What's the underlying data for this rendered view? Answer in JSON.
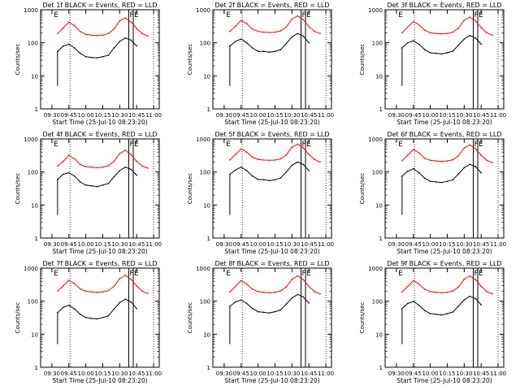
{
  "figure": {
    "ylabel": "Counts/sec",
    "xlabel": "Start Time (25-Jul-10 08:23:20)",
    "colors": {
      "events": "#000000",
      "lld": "#ff0000",
      "axis": "#000000"
    },
    "shared_axis": {
      "xticks": [
        "09:30",
        "09:45",
        "10:00",
        "10:15",
        "10:30",
        "10:45",
        "11:00"
      ],
      "yticks": [
        "1",
        "10",
        "100",
        "1000"
      ],
      "yscale": "log",
      "ylim": [
        1,
        1000
      ]
    }
  },
  "chart_data": [
    {
      "type": "line",
      "title": "Det 1f BLACK = Events, RED = LLD",
      "xlabel": "Start Time (25-Jul-10 08:23:20)",
      "ylabel": "Counts/sec",
      "x": [
        "09:35",
        "09:40",
        "09:45",
        "09:50",
        "09:55",
        "10:00",
        "10:05",
        "10:10",
        "10:15",
        "10:20",
        "10:25",
        "10:30",
        "10:35",
        "10:40",
        "10:45",
        "10:50",
        "10:55"
      ],
      "series": [
        {
          "name": "LLD",
          "color": "#ff0000",
          "values": [
            190,
            280,
            420,
            330,
            220,
            180,
            170,
            165,
            170,
            190,
            260,
            460,
            560,
            430,
            270,
            190,
            160
          ]
        },
        {
          "name": "Events",
          "color": "#000000",
          "values": [
            55,
            80,
            90,
            70,
            48,
            38,
            36,
            35,
            38,
            42,
            70,
            110,
            140,
            120,
            80,
            null,
            null
          ]
        }
      ],
      "markers": [
        {
          "label": "E",
          "x": "09:31"
        },
        {
          "label": "F",
          "x": "10:38"
        },
        {
          "label": "E",
          "x": "10:42"
        }
      ]
    },
    {
      "type": "line",
      "title": "Det 2f BLACK = Events, RED = LLD",
      "xlabel": "Start Time (25-Jul-10 08:23:20)",
      "ylabel": "Counts/sec",
      "x": [
        "09:35",
        "09:40",
        "09:45",
        "09:50",
        "09:55",
        "10:00",
        "10:05",
        "10:10",
        "10:15",
        "10:20",
        "10:25",
        "10:30",
        "10:35",
        "10:40",
        "10:45",
        "10:50",
        "10:55"
      ],
      "series": [
        {
          "name": "LLD",
          "color": "#ff0000",
          "values": [
            220,
            320,
            470,
            380,
            260,
            220,
            210,
            205,
            210,
            230,
            300,
            520,
            650,
            500,
            310,
            220,
            190
          ]
        },
        {
          "name": "Events",
          "color": "#000000",
          "values": [
            80,
            110,
            130,
            100,
            70,
            55,
            55,
            52,
            55,
            62,
            95,
            150,
            190,
            160,
            100,
            null,
            null
          ]
        }
      ],
      "markers": [
        {
          "label": "E",
          "x": "09:31"
        },
        {
          "label": "F",
          "x": "10:38"
        },
        {
          "label": "E",
          "x": "10:42"
        }
      ]
    },
    {
      "type": "line",
      "title": "Det 3f BLACK = Events, RED = LLD",
      "xlabel": "Start Time (25-Jul-10 08:23:20)",
      "ylabel": "Counts/sec",
      "x": [
        "09:35",
        "09:40",
        "09:45",
        "09:50",
        "09:55",
        "10:00",
        "10:05",
        "10:10",
        "10:15",
        "10:20",
        "10:25",
        "10:30",
        "10:35",
        "10:40",
        "10:45",
        "10:50",
        "10:55"
      ],
      "series": [
        {
          "name": "LLD",
          "color": "#ff0000",
          "values": [
            200,
            300,
            440,
            350,
            240,
            200,
            190,
            185,
            190,
            210,
            280,
            480,
            600,
            460,
            290,
            200,
            170
          ]
        },
        {
          "name": "Events",
          "color": "#000000",
          "values": [
            70,
            100,
            115,
            90,
            62,
            50,
            48,
            46,
            50,
            56,
            85,
            130,
            165,
            140,
            90,
            null,
            null
          ]
        }
      ],
      "markers": [
        {
          "label": "E",
          "x": "09:31"
        },
        {
          "label": "F",
          "x": "10:38"
        },
        {
          "label": "E",
          "x": "10:42"
        }
      ]
    },
    {
      "type": "line",
      "title": "Det 4f BLACK = Events, RED = LLD",
      "xlabel": "Start Time (25-Jul-10 08:23:20)",
      "ylabel": "Counts/sec",
      "x": [
        "09:35",
        "09:40",
        "09:45",
        "09:50",
        "09:55",
        "10:00",
        "10:05",
        "10:10",
        "10:15",
        "10:20",
        "10:25",
        "10:30",
        "10:35",
        "10:40",
        "10:45",
        "10:50",
        "10:55"
      ],
      "series": [
        {
          "name": "LLD",
          "color": "#ff0000",
          "values": [
            150,
            210,
            320,
            250,
            170,
            145,
            140,
            135,
            140,
            155,
            210,
            360,
            450,
            340,
            210,
            150,
            130
          ]
        },
        {
          "name": "Events",
          "color": "#000000",
          "values": [
            60,
            85,
            95,
            75,
            50,
            40,
            38,
            36,
            40,
            45,
            72,
            110,
            140,
            120,
            80,
            null,
            null
          ]
        }
      ],
      "markers": [
        {
          "label": "E",
          "x": "09:31"
        },
        {
          "label": "F",
          "x": "10:38"
        },
        {
          "label": "E",
          "x": "10:42"
        }
      ]
    },
    {
      "type": "line",
      "title": "Det 5f BLACK = Events, RED = LLD",
      "xlabel": "Start Time (25-Jul-10 08:23:20)",
      "ylabel": "Counts/sec",
      "x": [
        "09:35",
        "09:40",
        "09:45",
        "09:50",
        "09:55",
        "10:00",
        "10:05",
        "10:10",
        "10:15",
        "10:20",
        "10:25",
        "10:30",
        "10:35",
        "10:40",
        "10:45",
        "10:50",
        "10:55"
      ],
      "series": [
        {
          "name": "LLD",
          "color": "#ff0000",
          "values": [
            230,
            340,
            500,
            400,
            280,
            240,
            230,
            225,
            230,
            250,
            330,
            560,
            700,
            540,
            340,
            240,
            200
          ]
        },
        {
          "name": "Events",
          "color": "#000000",
          "values": [
            85,
            115,
            140,
            110,
            75,
            60,
            58,
            55,
            58,
            66,
            100,
            160,
            200,
            170,
            110,
            null,
            null
          ]
        }
      ],
      "markers": [
        {
          "label": "E",
          "x": "09:31"
        },
        {
          "label": "F",
          "x": "10:38"
        },
        {
          "label": "E",
          "x": "10:42"
        }
      ]
    },
    {
      "type": "line",
      "title": "Det 6f BLACK = Events, RED = LLD",
      "xlabel": "Start Time (25-Jul-10 08:23:20)",
      "ylabel": "Counts/sec",
      "x": [
        "09:35",
        "09:40",
        "09:45",
        "09:50",
        "09:55",
        "10:00",
        "10:05",
        "10:10",
        "10:15",
        "10:20",
        "10:25",
        "10:30",
        "10:35",
        "10:40",
        "10:45",
        "10:50",
        "10:55"
      ],
      "series": [
        {
          "name": "LLD",
          "color": "#ff0000",
          "values": [
            220,
            320,
            480,
            380,
            260,
            225,
            215,
            210,
            215,
            235,
            310,
            530,
            660,
            510,
            320,
            225,
            190
          ]
        },
        {
          "name": "Events",
          "color": "#000000",
          "values": [
            75,
            105,
            125,
            95,
            65,
            52,
            50,
            48,
            52,
            58,
            88,
            135,
            170,
            145,
            95,
            null,
            null
          ]
        }
      ],
      "markers": [
        {
          "label": "E",
          "x": "09:31"
        },
        {
          "label": "F",
          "x": "10:38"
        },
        {
          "label": "E",
          "x": "10:42"
        }
      ]
    },
    {
      "type": "line",
      "title": "Det 7f BLACK = Events, RED = LLD",
      "xlabel": "Start Time (25-Jul-10 08:23:20)",
      "ylabel": "Counts/sec",
      "x": [
        "09:35",
        "09:40",
        "09:45",
        "09:50",
        "09:55",
        "10:00",
        "10:05",
        "10:10",
        "10:15",
        "10:20",
        "10:25",
        "10:30",
        "10:35",
        "10:40",
        "10:45",
        "10:50",
        "10:55"
      ],
      "series": [
        {
          "name": "LLD",
          "color": "#ff0000",
          "values": [
            200,
            290,
            430,
            340,
            235,
            200,
            190,
            185,
            190,
            210,
            280,
            480,
            600,
            460,
            290,
            200,
            170
          ]
        },
        {
          "name": "Events",
          "color": "#000000",
          "values": [
            45,
            65,
            75,
            58,
            40,
            32,
            30,
            29,
            32,
            36,
            58,
            90,
            115,
            95,
            60,
            null,
            null
          ]
        }
      ],
      "markers": [
        {
          "label": "E",
          "x": "09:31"
        },
        {
          "label": "F",
          "x": "10:38"
        },
        {
          "label": "E",
          "x": "10:42"
        }
      ]
    },
    {
      "type": "line",
      "title": "Det 8f BLACK = Events, RED = LLD",
      "xlabel": "Start Time (25-Jul-10 08:23:20)",
      "ylabel": "Counts/sec",
      "x": [
        "09:35",
        "09:40",
        "09:45",
        "09:50",
        "09:55",
        "10:00",
        "10:05",
        "10:10",
        "10:15",
        "10:20",
        "10:25",
        "10:30",
        "10:35",
        "10:40",
        "10:45",
        "10:50",
        "10:55"
      ],
      "series": [
        {
          "name": "LLD",
          "color": "#ff0000",
          "values": [
            190,
            280,
            420,
            330,
            230,
            195,
            185,
            180,
            185,
            205,
            270,
            460,
            580,
            450,
            280,
            195,
            165
          ]
        },
        {
          "name": "Events",
          "color": "#000000",
          "values": [
            70,
            95,
            110,
            85,
            60,
            48,
            46,
            44,
            48,
            54,
            82,
            125,
            160,
            135,
            88,
            null,
            null
          ]
        }
      ],
      "markers": [
        {
          "label": "E",
          "x": "09:31"
        },
        {
          "label": "F",
          "x": "10:38"
        },
        {
          "label": "E",
          "x": "10:42"
        }
      ]
    },
    {
      "type": "line",
      "title": "Det 9f BLACK = Events, RED = LLD",
      "xlabel": "Start Time (25-Jul-10 08:23:20)",
      "ylabel": "Counts/sec",
      "x": [
        "09:35",
        "09:40",
        "09:45",
        "09:50",
        "09:55",
        "10:00",
        "10:05",
        "10:10",
        "10:15",
        "10:20",
        "10:25",
        "10:30",
        "10:35",
        "10:40",
        "10:45",
        "10:50",
        "10:55"
      ],
      "series": [
        {
          "name": "LLD",
          "color": "#ff0000",
          "values": [
            190,
            280,
            420,
            330,
            230,
            195,
            185,
            180,
            185,
            205,
            270,
            460,
            580,
            450,
            280,
            195,
            165
          ]
        },
        {
          "name": "Events",
          "color": "#000000",
          "values": [
            60,
            85,
            98,
            75,
            52,
            42,
            40,
            38,
            42,
            47,
            72,
            110,
            140,
            120,
            78,
            null,
            null
          ]
        }
      ],
      "markers": [
        {
          "label": "E",
          "x": "09:31"
        },
        {
          "label": "F",
          "x": "10:38"
        },
        {
          "label": "E",
          "x": "10:42"
        }
      ]
    }
  ]
}
